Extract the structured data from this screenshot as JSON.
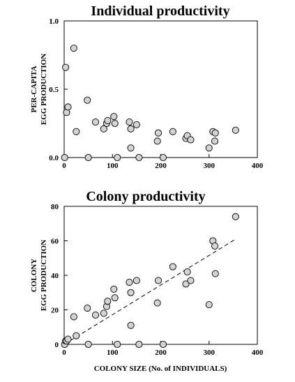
{
  "chart_data": [
    {
      "type": "scatter",
      "title": "Individual productivity",
      "xlabel": "",
      "ylabel_lines": [
        "PER-CAPITA",
        "EGG PRODUCTION"
      ],
      "xlim": [
        0,
        400
      ],
      "ylim": [
        0,
        1.0
      ],
      "xticks": [
        0,
        100,
        200,
        300,
        400
      ],
      "xtick_labels": [
        "0",
        "100",
        "200",
        "300",
        "400"
      ],
      "yticks": [
        0,
        0.5,
        1.0
      ],
      "ytick_labels": [
        "0.0",
        "0.5",
        "1.0"
      ],
      "grid": false,
      "points": [
        {
          "x": 1,
          "y": 0.0
        },
        {
          "x": 3,
          "y": 0.66
        },
        {
          "x": 5,
          "y": 0.33
        },
        {
          "x": 8,
          "y": 0.37
        },
        {
          "x": 20,
          "y": 0.8
        },
        {
          "x": 25,
          "y": 0.19
        },
        {
          "x": 48,
          "y": 0.42
        },
        {
          "x": 50,
          "y": 0.0
        },
        {
          "x": 65,
          "y": 0.26
        },
        {
          "x": 82,
          "y": 0.21
        },
        {
          "x": 88,
          "y": 0.25
        },
        {
          "x": 90,
          "y": 0.27
        },
        {
          "x": 103,
          "y": 0.3
        },
        {
          "x": 105,
          "y": 0.25
        },
        {
          "x": 110,
          "y": 0.0
        },
        {
          "x": 135,
          "y": 0.26
        },
        {
          "x": 138,
          "y": 0.21
        },
        {
          "x": 138,
          "y": 0.07
        },
        {
          "x": 150,
          "y": 0.24
        },
        {
          "x": 155,
          "y": 0.0
        },
        {
          "x": 193,
          "y": 0.12
        },
        {
          "x": 195,
          "y": 0.18
        },
        {
          "x": 205,
          "y": 0.0
        },
        {
          "x": 225,
          "y": 0.19
        },
        {
          "x": 252,
          "y": 0.14
        },
        {
          "x": 255,
          "y": 0.16
        },
        {
          "x": 262,
          "y": 0.13
        },
        {
          "x": 300,
          "y": 0.07
        },
        {
          "x": 308,
          "y": 0.19
        },
        {
          "x": 312,
          "y": 0.12
        },
        {
          "x": 313,
          "y": 0.18
        },
        {
          "x": 355,
          "y": 0.2
        }
      ]
    },
    {
      "type": "scatter",
      "title": "Colony productivity",
      "xlabel": "COLONY SIZE (No. of INDIVIDUALS)",
      "ylabel_lines": [
        "COLONY",
        "EGG PRODUCTION"
      ],
      "xlim": [
        0,
        400
      ],
      "ylim": [
        0,
        80
      ],
      "xticks": [
        0,
        100,
        200,
        300,
        400
      ],
      "xtick_labels": [
        "0",
        "100",
        "200",
        "300",
        "400"
      ],
      "yticks": [
        0,
        20,
        40,
        60,
        80
      ],
      "ytick_labels": [
        "0",
        "20",
        "40",
        "60",
        "80"
      ],
      "grid": false,
      "trend_line": {
        "style": "dashed",
        "x": [
          0,
          355
        ],
        "y": [
          0,
          61
        ]
      },
      "points": [
        {
          "x": 1,
          "y": 0
        },
        {
          "x": 3,
          "y": 2
        },
        {
          "x": 5,
          "y": 2
        },
        {
          "x": 8,
          "y": 3
        },
        {
          "x": 20,
          "y": 16
        },
        {
          "x": 25,
          "y": 5
        },
        {
          "x": 48,
          "y": 21
        },
        {
          "x": 50,
          "y": 0
        },
        {
          "x": 65,
          "y": 17
        },
        {
          "x": 82,
          "y": 18
        },
        {
          "x": 88,
          "y": 22
        },
        {
          "x": 90,
          "y": 25
        },
        {
          "x": 103,
          "y": 32
        },
        {
          "x": 105,
          "y": 27
        },
        {
          "x": 110,
          "y": 0
        },
        {
          "x": 135,
          "y": 36
        },
        {
          "x": 138,
          "y": 30
        },
        {
          "x": 138,
          "y": 11
        },
        {
          "x": 150,
          "y": 37
        },
        {
          "x": 155,
          "y": 0
        },
        {
          "x": 193,
          "y": 24
        },
        {
          "x": 195,
          "y": 37
        },
        {
          "x": 205,
          "y": 0
        },
        {
          "x": 225,
          "y": 45
        },
        {
          "x": 252,
          "y": 35
        },
        {
          "x": 255,
          "y": 42
        },
        {
          "x": 262,
          "y": 37
        },
        {
          "x": 300,
          "y": 23
        },
        {
          "x": 308,
          "y": 60
        },
        {
          "x": 312,
          "y": 57
        },
        {
          "x": 313,
          "y": 41
        },
        {
          "x": 355,
          "y": 74
        }
      ]
    }
  ]
}
